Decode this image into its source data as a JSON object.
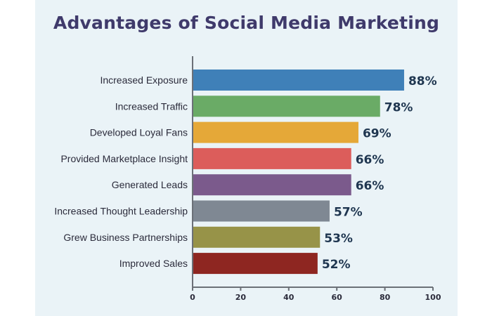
{
  "chart_data": {
    "type": "bar",
    "orientation": "horizontal",
    "title": "Advantages of Social Media Marketing",
    "categories": [
      "Increased Exposure",
      "Increased Traffic",
      "Developed Loyal Fans",
      "Provided Marketplace Insight",
      "Generated Leads",
      "Increased Thought Leadership",
      "Grew Business Partnerships",
      "Improved Sales"
    ],
    "values": [
      88,
      78,
      69,
      66,
      66,
      57,
      53,
      52
    ],
    "value_labels": [
      "88%",
      "78%",
      "69%",
      "66%",
      "66%",
      "57%",
      "53%",
      "52%"
    ],
    "colors": [
      "#3f80b8",
      "#6aab66",
      "#e5a838",
      "#dc5d5b",
      "#7b5a8c",
      "#7f8893",
      "#979348",
      "#8e2621"
    ],
    "xlim": [
      0,
      100
    ],
    "xticks": [
      "0",
      "20",
      "40",
      "60",
      "80",
      "100"
    ],
    "grid": false,
    "legend": "none"
  }
}
